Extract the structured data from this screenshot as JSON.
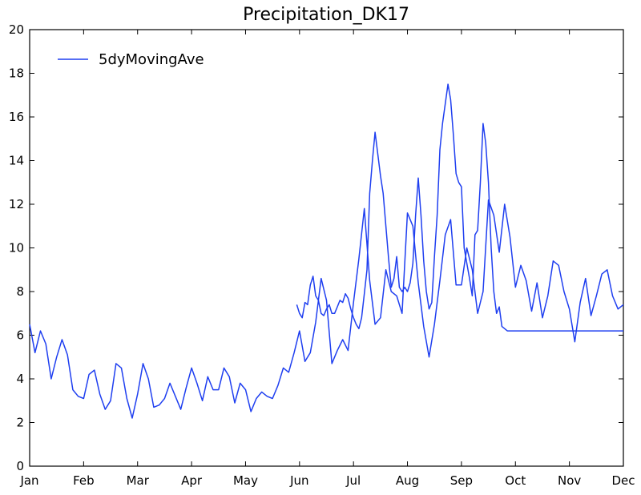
{
  "chart_data": {
    "type": "line",
    "title": "Precipitation_DK17",
    "xlabel": "",
    "ylabel": "",
    "ylim": [
      0,
      20
    ],
    "yticks": [
      0,
      2,
      4,
      6,
      8,
      10,
      12,
      14,
      16,
      18,
      20
    ],
    "xticks": [
      "Jan",
      "Feb",
      "Mar",
      "Apr",
      "May",
      "Jun",
      "Jul",
      "Aug",
      "Sep",
      "Oct",
      "Nov",
      "Dec"
    ],
    "legend": {
      "position": "top-left"
    },
    "grid": false,
    "series": [
      {
        "name": "5dyMovingAve",
        "color": "#1f3ff0",
        "x": [
          0.0,
          0.1,
          0.2,
          0.3,
          0.4,
          0.5,
          0.6,
          0.7,
          0.8,
          0.9,
          1.0,
          1.1,
          1.2,
          1.3,
          1.4,
          1.5,
          1.6,
          1.7,
          1.8,
          1.9,
          2.0,
          2.1,
          2.2,
          2.3,
          2.4,
          2.5,
          2.6,
          2.7,
          2.8,
          2.9,
          3.0,
          3.1,
          3.2,
          3.3,
          3.4,
          3.5,
          3.6,
          3.7,
          3.8,
          3.9,
          4.0,
          4.1,
          4.2,
          4.3,
          4.4,
          4.5,
          4.6,
          4.7,
          4.8,
          4.9,
          5.0,
          5.1,
          5.2,
          5.3,
          5.4,
          5.5,
          5.6,
          5.7,
          5.8,
          5.9,
          6.0,
          6.1,
          6.2,
          6.3,
          6.4,
          6.5,
          6.6,
          6.7,
          6.8,
          6.9,
          7.0,
          7.1,
          7.2,
          7.3,
          7.4,
          7.5,
          7.6,
          7.7,
          7.8,
          7.9,
          8.0,
          8.1,
          8.2,
          8.3,
          8.4,
          8.5,
          8.6,
          8.7,
          8.8,
          8.9,
          9.0,
          9.1,
          9.2,
          9.3,
          9.4,
          9.5,
          9.6,
          9.7,
          9.8,
          9.9,
          10.0,
          10.1,
          10.2,
          10.3,
          10.4,
          10.5,
          10.6,
          10.7,
          10.8,
          10.9,
          11.0
        ],
        "values": [
          6.5,
          5.2,
          6.2,
          5.6,
          4.0,
          5.0,
          5.8,
          5.1,
          3.5,
          3.2,
          3.1,
          4.2,
          4.4,
          3.3,
          2.6,
          3.0,
          4.7,
          4.5,
          3.1,
          2.2,
          3.3,
          4.7,
          4.0,
          2.7,
          2.8,
          3.1,
          3.8,
          3.2,
          2.6,
          3.6,
          4.5,
          3.8,
          3.0,
          4.1,
          3.5,
          3.5,
          4.5,
          4.1,
          2.9,
          3.8,
          3.5,
          2.5,
          3.1,
          3.4,
          3.2,
          3.1,
          3.7,
          4.5,
          4.3,
          5.2,
          6.2,
          4.8,
          5.2,
          6.6,
          8.6,
          7.6,
          4.7,
          5.3,
          5.8,
          5.3,
          7.5,
          9.5,
          11.8,
          8.5,
          6.5,
          6.8,
          9.0,
          8.0,
          7.8,
          7.0,
          11.6,
          11.0,
          8.4,
          6.4,
          5.0,
          6.5,
          8.5,
          10.6,
          11.3,
          8.3,
          8.3,
          10.0,
          9.0,
          7.0,
          8.0,
          12.2,
          11.5,
          9.8,
          12.0,
          10.5,
          8.2,
          9.2,
          8.5,
          7.1,
          8.4,
          6.8,
          7.8,
          9.4,
          9.2,
          8.0,
          7.2,
          5.7,
          7.5,
          8.6,
          6.9,
          7.8,
          8.8,
          9.0,
          7.8,
          7.2,
          7.4
        ]
      },
      {
        "name": "",
        "color": "#1f3ff0",
        "x": [
          4.95,
          5.0,
          5.05,
          5.1,
          5.15,
          5.2,
          5.25,
          5.3,
          5.35,
          5.4,
          5.45,
          5.5,
          5.55,
          5.6,
          5.65,
          5.7,
          5.75,
          5.8,
          5.85,
          5.9,
          5.95,
          6.0,
          6.05,
          6.1,
          6.15,
          6.2,
          6.25,
          6.3,
          6.35,
          6.4,
          6.45,
          6.5,
          6.55,
          6.6,
          6.65,
          6.7,
          6.75,
          6.8,
          6.85,
          6.9,
          6.95,
          7.0,
          7.05,
          7.1,
          7.15,
          7.2,
          7.25,
          7.3,
          7.35,
          7.4,
          7.45,
          7.5,
          7.55,
          7.6,
          7.65,
          7.7,
          7.75,
          7.8,
          7.85,
          7.9,
          7.95,
          8.0,
          8.05,
          8.1,
          8.15,
          8.2,
          8.25,
          8.3,
          8.35,
          8.4,
          8.45,
          8.5,
          8.55,
          8.6,
          8.65,
          8.7,
          8.75,
          8.8,
          8.85,
          8.9,
          8.95,
          9.0,
          9.05,
          9.1,
          9.15,
          9.2,
          9.25,
          9.3,
          9.35,
          9.4,
          9.45,
          9.5,
          9.55,
          9.6,
          9.65,
          9.7,
          9.75,
          9.8,
          9.85,
          9.9,
          9.95,
          10.0,
          10.05,
          10.1,
          10.15,
          10.2,
          10.25,
          10.3,
          10.35,
          10.4,
          10.45,
          10.5,
          10.55,
          10.6,
          10.65,
          10.7,
          10.75,
          10.8,
          10.85,
          10.9,
          10.95,
          11.0
        ],
        "values": [
          7.4,
          7.0,
          6.8,
          7.5,
          7.4,
          8.3,
          8.7,
          7.8,
          7.6,
          7.0,
          6.9,
          7.2,
          7.4,
          7.0,
          7.0,
          7.3,
          7.6,
          7.5,
          7.9,
          7.7,
          7.2,
          6.8,
          6.5,
          6.3,
          6.8,
          7.9,
          9.0,
          12.5,
          14.0,
          15.3,
          14.3,
          13.3,
          12.5,
          11.0,
          9.5,
          8.2,
          8.6,
          9.6,
          8.2,
          8.0,
          8.2,
          8.0,
          8.4,
          9.3,
          11.5,
          13.2,
          11.5,
          9.4,
          8.0,
          7.2,
          7.5,
          9.6,
          11.5,
          14.5,
          15.7,
          16.6,
          17.5,
          16.8,
          15.2,
          13.4,
          13.0,
          12.8,
          10.0,
          9.3,
          8.6,
          7.8,
          10.6,
          10.8,
          13.0,
          15.7,
          14.8,
          13.0,
          10.0,
          8.0,
          7.0,
          7.3,
          6.4,
          6.3,
          6.2,
          6.2,
          6.2,
          6.2,
          6.2,
          6.2,
          6.2,
          6.2,
          6.2,
          6.2,
          6.2,
          6.2,
          6.2,
          6.2,
          6.2,
          6.2,
          6.2,
          6.2,
          6.2,
          6.2,
          6.2,
          6.2,
          6.2,
          6.2,
          6.2,
          6.2,
          6.2,
          6.2,
          6.2,
          6.2,
          6.2,
          6.2,
          6.2,
          6.2,
          6.2,
          6.2,
          6.2,
          6.2,
          6.2,
          6.2,
          6.2,
          6.2,
          6.2,
          6.2
        ]
      }
    ]
  }
}
